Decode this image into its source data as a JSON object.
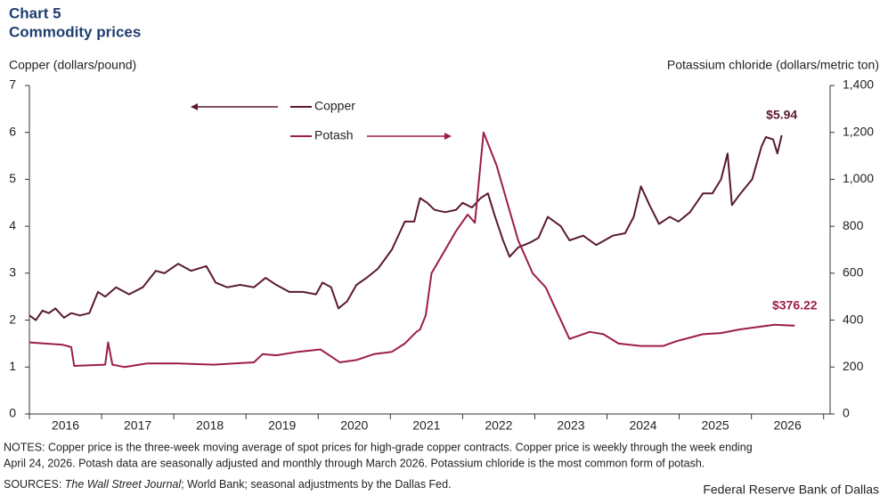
{
  "chart_data": {
    "type": "line",
    "title": "Chart 5",
    "subtitle": "Commodity prices",
    "y_label": "Copper (dollars/pound)",
    "y2_label": "Potassium chloride (dollars/metric ton)",
    "xlim": [
      2016,
      2027.09
    ],
    "xticks": [
      2016,
      2017,
      2018,
      2019,
      2020,
      2021,
      2022,
      2023,
      2024,
      2025,
      2026,
      2027
    ],
    "x_labels": [
      {
        "value": 2016.5,
        "label": "2016"
      },
      {
        "value": 2017.5,
        "label": "2017"
      },
      {
        "value": 2018.5,
        "label": "2018"
      },
      {
        "value": 2019.5,
        "label": "2019"
      },
      {
        "value": 2020.5,
        "label": "2020"
      },
      {
        "value": 2021.5,
        "label": "2021"
      },
      {
        "value": 2022.5,
        "label": "2022"
      },
      {
        "value": 2023.5,
        "label": "2023"
      },
      {
        "value": 2024.5,
        "label": "2024"
      },
      {
        "value": 2025.5,
        "label": "2025"
      },
      {
        "value": 2026.5,
        "label": "2026"
      }
    ],
    "ylim": [
      0,
      7
    ],
    "yticks": [
      0,
      1,
      2,
      3,
      4,
      5,
      6,
      7
    ],
    "y2lim": [
      0,
      1400
    ],
    "y2ticks": [
      0,
      200,
      400,
      600,
      800,
      {
        "value": 1000,
        "label": "1,000"
      },
      {
        "value": 1200,
        "label": "1,200"
      },
      {
        "value": 1400,
        "label": "1,400"
      }
    ],
    "series": [
      {
        "name": "Copper",
        "color": "#5a1a2e",
        "axis": "y",
        "end_label": "$5.94",
        "x": [
          2016.0,
          2016.09,
          2016.18,
          2016.27,
          2016.36,
          2016.48,
          2016.58,
          2016.7,
          2016.83,
          2016.95,
          2017.05,
          2017.2,
          2017.38,
          2017.57,
          2017.75,
          2017.87,
          2018.06,
          2018.24,
          2018.45,
          2018.58,
          2018.74,
          2018.92,
          2019.11,
          2019.27,
          2019.42,
          2019.6,
          2019.79,
          2019.97,
          2020.06,
          2020.18,
          2020.28,
          2020.4,
          2020.53,
          2020.67,
          2020.83,
          2021.02,
          2021.2,
          2021.33,
          2021.41,
          2021.51,
          2021.61,
          2021.76,
          2021.91,
          2022.0,
          2022.13,
          2022.25,
          2022.35,
          2022.45,
          2022.56,
          2022.65,
          2022.77,
          2022.93,
          2023.05,
          2023.18,
          2023.36,
          2023.48,
          2023.67,
          2023.85,
          2024.08,
          2024.25,
          2024.37,
          2024.47,
          2024.59,
          2024.72,
          2024.87,
          2024.99,
          2025.15,
          2025.33,
          2025.46,
          2025.58,
          2025.67,
          2025.73,
          2025.85,
          2026.01,
          2026.14,
          2026.2,
          2026.3,
          2026.36,
          2026.42
        ],
        "values": [
          2.1,
          2.0,
          2.2,
          2.15,
          2.25,
          2.05,
          2.15,
          2.1,
          2.15,
          2.6,
          2.5,
          2.7,
          2.55,
          2.7,
          3.05,
          3.0,
          3.2,
          3.05,
          3.15,
          2.8,
          2.7,
          2.75,
          2.7,
          2.9,
          2.75,
          2.6,
          2.6,
          2.55,
          2.8,
          2.7,
          2.25,
          2.4,
          2.75,
          2.9,
          3.1,
          3.5,
          4.1,
          4.1,
          4.6,
          4.5,
          4.35,
          4.3,
          4.35,
          4.5,
          4.4,
          4.6,
          4.7,
          4.2,
          3.7,
          3.35,
          3.55,
          3.65,
          3.75,
          4.2,
          4.0,
          3.7,
          3.8,
          3.6,
          3.8,
          3.85,
          4.2,
          4.85,
          4.45,
          4.05,
          4.2,
          4.1,
          4.3,
          4.7,
          4.7,
          5.0,
          5.55,
          4.45,
          4.7,
          5.0,
          5.7,
          5.9,
          5.85,
          5.55,
          5.94
        ]
      },
      {
        "name": "Potash",
        "color": "#9b1d4a",
        "axis": "y2",
        "end_label": "$376.22",
        "x": [
          2016.0,
          2016.46,
          2016.58,
          2016.62,
          2017.05,
          2017.09,
          2017.15,
          2017.32,
          2017.63,
          2018.06,
          2018.55,
          2019.11,
          2019.23,
          2019.42,
          2019.72,
          2020.03,
          2020.18,
          2020.3,
          2020.53,
          2020.77,
          2021.02,
          2021.2,
          2021.36,
          2021.41,
          2021.49,
          2021.57,
          2021.76,
          2021.91,
          2022.07,
          2022.17,
          2022.29,
          2022.47,
          2022.62,
          2022.77,
          2022.97,
          2023.15,
          2023.27,
          2023.48,
          2023.76,
          2023.95,
          2024.16,
          2024.47,
          2024.78,
          2024.96,
          2025.33,
          2025.58,
          2025.83,
          2026.07,
          2026.32,
          2026.6
        ],
        "values": [
          305,
          295,
          285,
          205,
          210,
          305,
          210,
          200,
          215,
          215,
          210,
          220,
          255,
          250,
          265,
          275,
          245,
          220,
          230,
          255,
          265,
          300,
          350,
          360,
          420,
          600,
          700,
          780,
          850,
          815,
          1200,
          1060,
          900,
          740,
          600,
          540,
          460,
          320,
          350,
          340,
          300,
          290,
          290,
          310,
          340,
          345,
          360,
          370,
          380,
          376.22
        ]
      }
    ],
    "notes": [
      "NOTES: Copper price is the three-week moving average of spot prices for high-grade copper contracts. Copper price is weekly through the week ending",
      "April 24, 2026. Potash data are seasonally adjusted and monthly through March 2026. Potassium chloride is the most common form of potash."
    ],
    "sources": [
      "SOURCES: ",
      "The Wall Street Journal",
      "; World Bank; seasonal adjustments by the Dallas Fed."
    ],
    "credit": "Federal Reserve Bank of Dallas"
  }
}
